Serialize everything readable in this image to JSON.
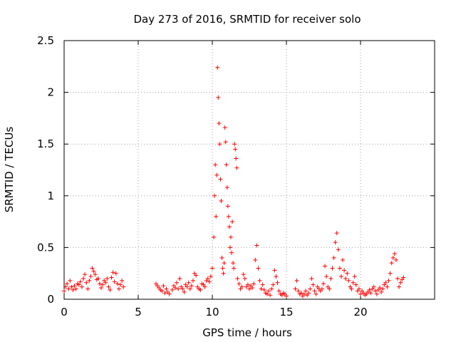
{
  "chart_data": {
    "type": "scatter",
    "title": "Day 273 of 2016, SRMTID for receiver solo",
    "xlabel": "GPS time / hours",
    "ylabel": "SRMTID / TECUs",
    "xlim": [
      0,
      25
    ],
    "ylim": [
      0,
      2.5
    ],
    "xticks": [
      0,
      5,
      10,
      15,
      20
    ],
    "xtick_labels": [
      "0",
      "5",
      "10",
      "15",
      "20"
    ],
    "yticks": [
      0,
      0.5,
      1,
      1.5,
      2,
      2.5
    ],
    "ytick_labels": [
      "0",
      "0.5",
      "1",
      "1.5",
      "2",
      "2.5"
    ],
    "grid": true,
    "marker": "+",
    "series_color": "#ff0000",
    "series": [
      {
        "name": "SRMTID",
        "points": [
          [
            0.0,
            0.08
          ],
          [
            0.1,
            0.12
          ],
          [
            0.2,
            0.15
          ],
          [
            0.3,
            0.1
          ],
          [
            0.4,
            0.18
          ],
          [
            0.5,
            0.12
          ],
          [
            0.6,
            0.09
          ],
          [
            0.7,
            0.13
          ],
          [
            0.8,
            0.1
          ],
          [
            0.9,
            0.15
          ],
          [
            1.0,
            0.14
          ],
          [
            1.1,
            0.17
          ],
          [
            1.2,
            0.12
          ],
          [
            1.3,
            0.2
          ],
          [
            1.4,
            0.24
          ],
          [
            1.5,
            0.16
          ],
          [
            1.6,
            0.1
          ],
          [
            1.7,
            0.18
          ],
          [
            1.8,
            0.22
          ],
          [
            1.9,
            0.3
          ],
          [
            2.0,
            0.27
          ],
          [
            2.1,
            0.24
          ],
          [
            2.2,
            0.19
          ],
          [
            2.3,
            0.2
          ],
          [
            2.4,
            0.15
          ],
          [
            2.5,
            0.11
          ],
          [
            2.6,
            0.14
          ],
          [
            2.7,
            0.18
          ],
          [
            2.8,
            0.16
          ],
          [
            2.9,
            0.2
          ],
          [
            3.0,
            0.12
          ],
          [
            3.1,
            0.09
          ],
          [
            3.2,
            0.21
          ],
          [
            3.3,
            0.26
          ],
          [
            3.4,
            0.17
          ],
          [
            3.5,
            0.25
          ],
          [
            3.6,
            0.15
          ],
          [
            3.7,
            0.1
          ],
          [
            3.8,
            0.14
          ],
          [
            3.9,
            0.18
          ],
          [
            4.0,
            0.12
          ],
          [
            6.2,
            0.15
          ],
          [
            6.3,
            0.13
          ],
          [
            6.4,
            0.11
          ],
          [
            6.5,
            0.09
          ],
          [
            6.6,
            0.08
          ],
          [
            6.7,
            0.13
          ],
          [
            6.8,
            0.06
          ],
          [
            6.9,
            0.1
          ],
          [
            7.0,
            0.07
          ],
          [
            7.1,
            0.05
          ],
          [
            7.3,
            0.09
          ],
          [
            7.4,
            0.13
          ],
          [
            7.5,
            0.11
          ],
          [
            7.6,
            0.16
          ],
          [
            7.7,
            0.1
          ],
          [
            7.8,
            0.2
          ],
          [
            7.9,
            0.12
          ],
          [
            8.0,
            0.1
          ],
          [
            8.1,
            0.07
          ],
          [
            8.2,
            0.14
          ],
          [
            8.3,
            0.12
          ],
          [
            8.4,
            0.16
          ],
          [
            8.5,
            0.1
          ],
          [
            8.6,
            0.13
          ],
          [
            8.7,
            0.18
          ],
          [
            8.8,
            0.25
          ],
          [
            8.9,
            0.23
          ],
          [
            9.0,
            0.12
          ],
          [
            9.1,
            0.1
          ],
          [
            9.2,
            0.09
          ],
          [
            9.3,
            0.15
          ],
          [
            9.4,
            0.14
          ],
          [
            9.5,
            0.12
          ],
          [
            9.6,
            0.18
          ],
          [
            9.7,
            0.2
          ],
          [
            9.8,
            0.17
          ],
          [
            9.9,
            0.22
          ],
          [
            10.0,
            0.3
          ],
          [
            10.1,
            0.6
          ],
          [
            10.15,
            1.0
          ],
          [
            10.2,
            1.3
          ],
          [
            10.25,
            0.8
          ],
          [
            10.3,
            1.2
          ],
          [
            10.35,
            2.24
          ],
          [
            10.4,
            1.95
          ],
          [
            10.45,
            1.7
          ],
          [
            10.5,
            1.5
          ],
          [
            10.55,
            1.16
          ],
          [
            10.6,
            0.95
          ],
          [
            10.65,
            0.4
          ],
          [
            10.7,
            0.3
          ],
          [
            10.75,
            0.25
          ],
          [
            10.8,
            0.35
          ],
          [
            10.85,
            1.66
          ],
          [
            10.9,
            1.52
          ],
          [
            10.95,
            1.3
          ],
          [
            11.0,
            1.08
          ],
          [
            11.05,
            0.9
          ],
          [
            11.1,
            0.8
          ],
          [
            11.15,
            0.7
          ],
          [
            11.2,
            0.5
          ],
          [
            11.25,
            0.6
          ],
          [
            11.3,
            0.45
          ],
          [
            11.35,
            0.75
          ],
          [
            11.4,
            0.35
          ],
          [
            11.45,
            0.3
          ],
          [
            11.5,
            1.5
          ],
          [
            11.55,
            1.45
          ],
          [
            11.6,
            1.36
          ],
          [
            11.65,
            1.27
          ],
          [
            11.7,
            0.2
          ],
          [
            11.8,
            0.15
          ],
          [
            11.9,
            0.1
          ],
          [
            12.0,
            0.12
          ],
          [
            12.1,
            0.24
          ],
          [
            12.2,
            0.2
          ],
          [
            12.3,
            0.12
          ],
          [
            12.4,
            0.14
          ],
          [
            12.5,
            0.1
          ],
          [
            12.6,
            0.13
          ],
          [
            12.7,
            0.11
          ],
          [
            12.8,
            0.15
          ],
          [
            12.9,
            0.38
          ],
          [
            13.0,
            0.52
          ],
          [
            13.1,
            0.3
          ],
          [
            13.2,
            0.18
          ],
          [
            13.3,
            0.1
          ],
          [
            13.4,
            0.14
          ],
          [
            13.5,
            0.09
          ],
          [
            13.6,
            0.06
          ],
          [
            13.7,
            0.05
          ],
          [
            13.8,
            0.08
          ],
          [
            13.9,
            0.04
          ],
          [
            14.0,
            0.1
          ],
          [
            14.1,
            0.14
          ],
          [
            14.2,
            0.28
          ],
          [
            14.3,
            0.22
          ],
          [
            14.4,
            0.16
          ],
          [
            14.5,
            0.08
          ],
          [
            14.6,
            0.05
          ],
          [
            14.7,
            0.04
          ],
          [
            14.8,
            0.06
          ],
          [
            14.9,
            0.05
          ],
          [
            15.0,
            0.03
          ],
          [
            15.6,
            0.1
          ],
          [
            15.7,
            0.18
          ],
          [
            15.8,
            0.08
          ],
          [
            15.9,
            0.05
          ],
          [
            16.0,
            0.06
          ],
          [
            16.1,
            0.03
          ],
          [
            16.2,
            0.05
          ],
          [
            16.3,
            0.08
          ],
          [
            16.4,
            0.04
          ],
          [
            16.5,
            0.06
          ],
          [
            16.6,
            0.1
          ],
          [
            16.7,
            0.2
          ],
          [
            16.8,
            0.14
          ],
          [
            16.9,
            0.08
          ],
          [
            17.0,
            0.05
          ],
          [
            17.1,
            0.12
          ],
          [
            17.2,
            0.1
          ],
          [
            17.3,
            0.08
          ],
          [
            17.4,
            0.1
          ],
          [
            17.5,
            0.15
          ],
          [
            17.6,
            0.32
          ],
          [
            17.7,
            0.22
          ],
          [
            17.8,
            0.12
          ],
          [
            17.9,
            0.1
          ],
          [
            18.0,
            0.2
          ],
          [
            18.1,
            0.3
          ],
          [
            18.2,
            0.4
          ],
          [
            18.3,
            0.55
          ],
          [
            18.4,
            0.64
          ],
          [
            18.5,
            0.48
          ],
          [
            18.6,
            0.3
          ],
          [
            18.7,
            0.22
          ],
          [
            18.8,
            0.38
          ],
          [
            18.9,
            0.28
          ],
          [
            19.0,
            0.2
          ],
          [
            19.1,
            0.25
          ],
          [
            19.2,
            0.18
          ],
          [
            19.3,
            0.12
          ],
          [
            19.4,
            0.1
          ],
          [
            19.5,
            0.16
          ],
          [
            19.6,
            0.22
          ],
          [
            19.7,
            0.14
          ],
          [
            19.8,
            0.08
          ],
          [
            19.9,
            0.1
          ],
          [
            20.0,
            0.05
          ],
          [
            20.1,
            0.08
          ],
          [
            20.2,
            0.06
          ],
          [
            20.3,
            0.04
          ],
          [
            20.4,
            0.05
          ],
          [
            20.5,
            0.07
          ],
          [
            20.6,
            0.09
          ],
          [
            20.7,
            0.06
          ],
          [
            20.8,
            0.1
          ],
          [
            20.9,
            0.12
          ],
          [
            21.0,
            0.08
          ],
          [
            21.1,
            0.05
          ],
          [
            21.2,
            0.09
          ],
          [
            21.3,
            0.11
          ],
          [
            21.4,
            0.07
          ],
          [
            21.5,
            0.1
          ],
          [
            21.6,
            0.14
          ],
          [
            21.7,
            0.16
          ],
          [
            21.8,
            0.12
          ],
          [
            21.9,
            0.18
          ],
          [
            22.0,
            0.25
          ],
          [
            22.1,
            0.35
          ],
          [
            22.2,
            0.4
          ],
          [
            22.3,
            0.44
          ],
          [
            22.4,
            0.38
          ],
          [
            22.5,
            0.2
          ],
          [
            22.6,
            0.12
          ],
          [
            22.7,
            0.16
          ],
          [
            22.8,
            0.19
          ],
          [
            22.9,
            0.21
          ]
        ]
      }
    ]
  }
}
